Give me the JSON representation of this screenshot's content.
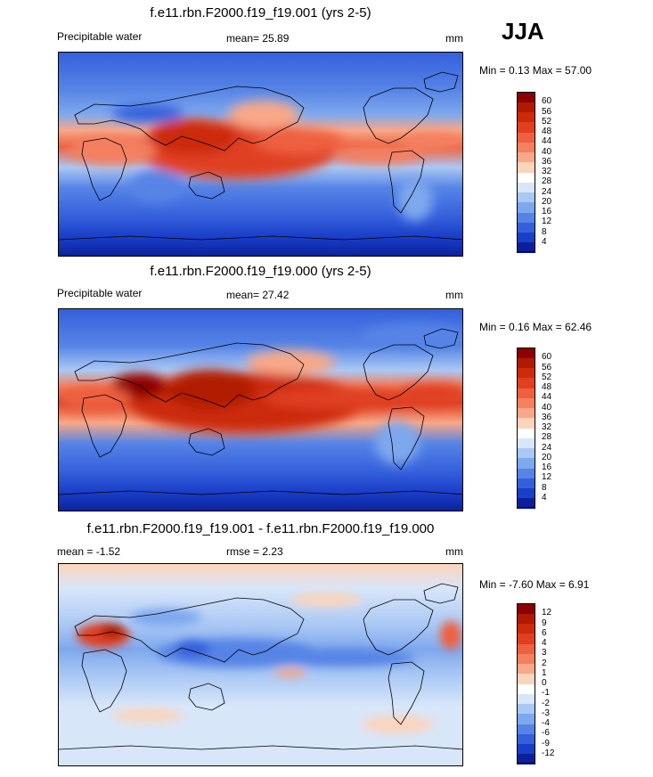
{
  "season": "JJA",
  "panels": [
    {
      "title": "f.e11.rbn.F2000.f19_f19.001 (yrs 2-5)",
      "variable": "Precipitable water",
      "mean_text": "mean=  25.89",
      "units": "mm",
      "minmax": "Min =   0.13 Max =  57.00",
      "colorbar": {
        "labels": [
          "60",
          "56",
          "52",
          "48",
          "44",
          "40",
          "36",
          "32",
          "28",
          "24",
          "20",
          "16",
          "12",
          "8",
          "4"
        ],
        "colors": [
          "#8b0000",
          "#b01a00",
          "#cc2a0a",
          "#e04020",
          "#ee6040",
          "#f48060",
          "#f8a888",
          "#fcd4bc",
          "#ffffff",
          "#d8e6fa",
          "#aac8f4",
          "#7ea8ee",
          "#5684e6",
          "#3460dc",
          "#1a3ec8",
          "#0a209a"
        ]
      }
    },
    {
      "title": "f.e11.rbn.F2000.f19_f19.000 (yrs 2-5)",
      "variable": "Precipitable water",
      "mean_text": "mean=  27.42",
      "units": "mm",
      "minmax": "Min =   0.16 Max =  62.46",
      "colorbar": {
        "labels": [
          "60",
          "56",
          "52",
          "48",
          "44",
          "40",
          "36",
          "32",
          "28",
          "24",
          "20",
          "16",
          "12",
          "8",
          "4"
        ],
        "colors": [
          "#8b0000",
          "#b01a00",
          "#cc2a0a",
          "#e04020",
          "#ee6040",
          "#f48060",
          "#f8a888",
          "#fcd4bc",
          "#ffffff",
          "#d8e6fa",
          "#aac8f4",
          "#7ea8ee",
          "#5684e6",
          "#3460dc",
          "#1a3ec8",
          "#0a209a"
        ]
      }
    },
    {
      "title": "f.e11.rbn.F2000.f19_f19.001 - f.e11.rbn.F2000.f19_f19.000",
      "variable": "mean =  -1.52",
      "mean_text": "rmse =   2.23",
      "units": "mm",
      "minmax": "Min =  -7.60 Max =   6.91",
      "colorbar": {
        "labels": [
          "12",
          "9",
          "6",
          "4",
          "3",
          "2",
          "1",
          "0",
          "-1",
          "-2",
          "-3",
          "-4",
          "-6",
          "-9",
          "-12"
        ],
        "colors": [
          "#8b0000",
          "#b01a00",
          "#cc2a0a",
          "#e04020",
          "#ee6040",
          "#f48060",
          "#f8a888",
          "#fcd4bc",
          "#ffffff",
          "#d8e6fa",
          "#aac8f4",
          "#7ea8ee",
          "#5684e6",
          "#3460dc",
          "#1a3ec8",
          "#0a209a"
        ]
      }
    }
  ]
}
